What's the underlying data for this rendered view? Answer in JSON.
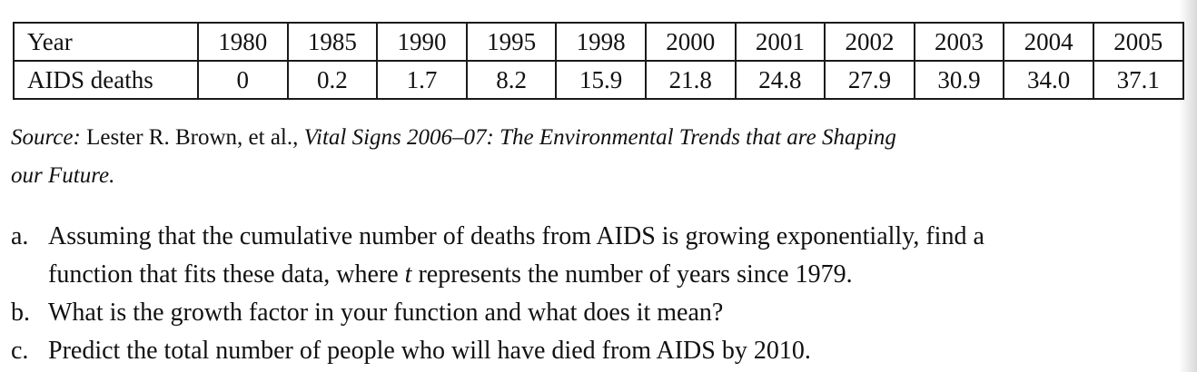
{
  "table": {
    "header_label": "Year",
    "row_label": "AIDS deaths",
    "years": [
      "1980",
      "1985",
      "1990",
      "1995",
      "1998",
      "2000",
      "2001",
      "2002",
      "2003",
      "2004",
      "2005"
    ],
    "deaths": [
      "0",
      "0.2",
      "1.7",
      "8.2",
      "15.9",
      "21.8",
      "24.8",
      "27.9",
      "30.9",
      "34.0",
      "37.1"
    ]
  },
  "source": {
    "label": "Source:",
    "authors": "Lester R. Brown, et al.,",
    "title_line1": "Vital Signs 2006–07: The Environmental Trends that are Shaping",
    "title_line2": "our Future."
  },
  "questions": [
    {
      "marker": "a.",
      "line1": "Assuming that the cumulative number of deaths from AIDS is growing exponentially, find a",
      "line2_before": "function that fits these data, where ",
      "line2_var": "t",
      "line2_after": " represents the number of years since 1979."
    },
    {
      "marker": "b.",
      "text": "What is the growth factor in your function and what does it mean?"
    },
    {
      "marker": "c.",
      "text": "Predict the total number of people who will have died from AIDS by 2010."
    }
  ]
}
